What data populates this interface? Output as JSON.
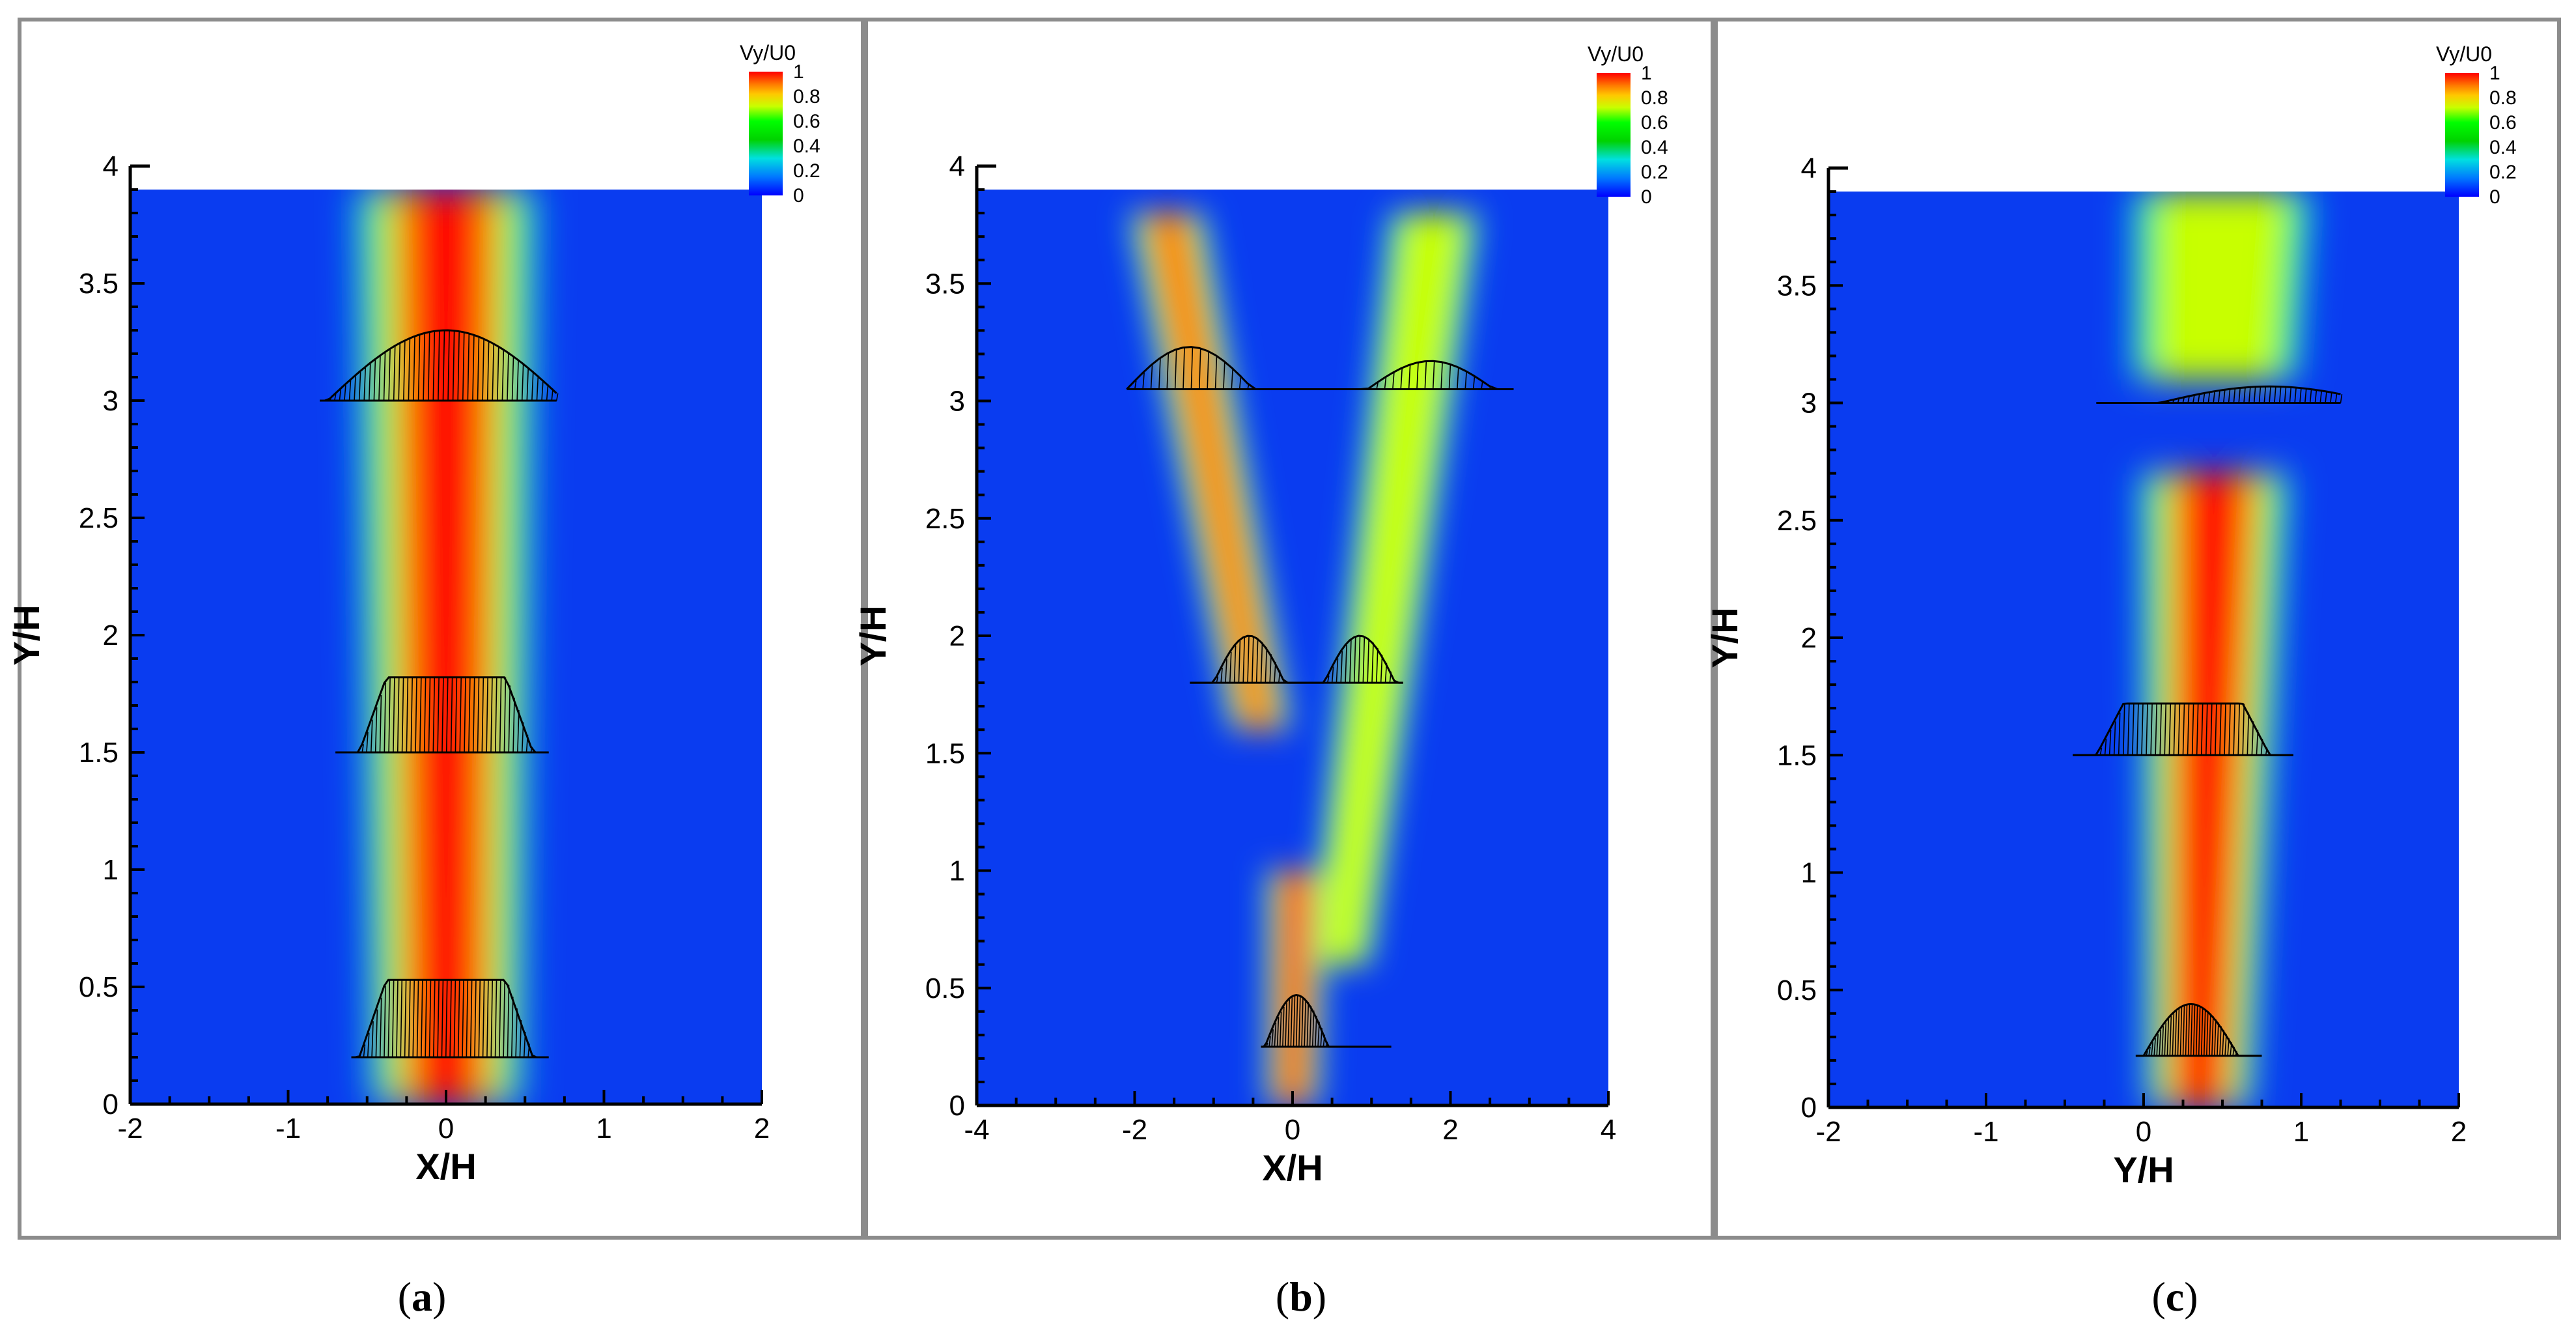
{
  "colors": {
    "scale": [
      "#0000ff",
      "#0078ff",
      "#00e0e0",
      "#00d200",
      "#00ff00",
      "#c8ff00",
      "#ffc800",
      "#ff7800",
      "#ff0000"
    ],
    "background": "#0a3cf0"
  },
  "chart_data": [
    {
      "type": "heatmap",
      "panel_label": "a",
      "title": "",
      "xlabel": "X/H",
      "ylabel": "Y/H",
      "xlim": [
        -2,
        2
      ],
      "ylim": [
        0,
        4
      ],
      "xticks": [
        "-2",
        "-1",
        "0",
        "1",
        "2"
      ],
      "yticks": [
        "0",
        "0.5",
        "1",
        "1.5",
        "2",
        "2.5",
        "3",
        "3.5",
        "4"
      ],
      "field_top": 3.9,
      "colorbar": {
        "title": "Vy/U0",
        "ticks": [
          "0",
          "0.2",
          "0.4",
          "0.6",
          "0.8",
          "1"
        ],
        "range": [
          0,
          1
        ]
      },
      "jets": [
        {
          "x0": 0.0,
          "y0": 0.0,
          "x1": 0.0,
          "y1": 3.9,
          "core_width": [
            0.5,
            0.6
          ],
          "max_value": 1.0
        }
      ],
      "profiles": [
        {
          "y": 3.0,
          "x_range": [
            -0.8,
            0.7
          ],
          "peak": 0.3,
          "center": 0.0,
          "half_width": 0.75,
          "shape": "dome"
        },
        {
          "y": 1.5,
          "x_range": [
            -0.7,
            0.65
          ],
          "peak": 0.32,
          "center": 0.0,
          "half_width": 0.55,
          "shape": "flat"
        },
        {
          "y": 0.2,
          "x_range": [
            -0.6,
            0.65
          ],
          "peak": 0.33,
          "center": 0.0,
          "half_width": 0.55,
          "shape": "flat"
        }
      ]
    },
    {
      "type": "heatmap",
      "panel_label": "b",
      "title": "",
      "xlabel": "X/H",
      "ylabel": "Y/H",
      "xlim": [
        -4,
        4
      ],
      "ylim": [
        0,
        4
      ],
      "xticks": [
        "-4",
        "-2",
        "0",
        "2",
        "4"
      ],
      "yticks": [
        "0",
        "0.5",
        "1",
        "1.5",
        "2",
        "2.5",
        "3",
        "3.5",
        "4"
      ],
      "field_top": 3.9,
      "colorbar": {
        "title": "Vy/U0",
        "ticks": [
          "0",
          "0.2",
          "0.4",
          "0.6",
          "0.8",
          "1"
        ],
        "range": [
          0,
          1
        ]
      },
      "jets": [
        {
          "x0": 0.0,
          "y0": 0.0,
          "x1": 0.05,
          "y1": 1.0,
          "core_width": [
            0.35,
            0.4
          ],
          "max_value": 1.0
        },
        {
          "x0": -0.4,
          "y0": 1.6,
          "x1": -1.6,
          "y1": 3.8,
          "core_width": [
            0.4,
            0.5
          ],
          "max_value": 0.9
        },
        {
          "x0": 0.6,
          "y0": 0.6,
          "x1": 1.8,
          "y1": 3.8,
          "core_width": [
            0.4,
            0.6
          ],
          "max_value": 0.72
        }
      ],
      "profiles": [
        {
          "y": 3.05,
          "x_range": [
            -2.1,
            2.8
          ],
          "peak": 0.18,
          "center": -1.3,
          "half_width": 0.8,
          "shape": "dome",
          "second_center": 1.75,
          "second_peak": 0.12
        },
        {
          "y": 1.8,
          "x_range": [
            -1.3,
            1.4
          ],
          "peak": 0.2,
          "center": -0.55,
          "half_width": 0.45,
          "shape": "dome",
          "second_center": 0.85,
          "second_peak": 0.2
        },
        {
          "y": 0.25,
          "x_range": [
            -0.4,
            1.25
          ],
          "peak": 0.22,
          "center": 0.05,
          "half_width": 0.4,
          "shape": "dome"
        }
      ]
    },
    {
      "type": "heatmap",
      "panel_label": "c",
      "title": "",
      "xlabel": "Y/H",
      "ylabel": "Y/H",
      "xlim": [
        -2,
        2
      ],
      "ylim": [
        0,
        4
      ],
      "xticks": [
        "-2",
        "-1",
        "0",
        "1",
        "2"
      ],
      "yticks": [
        "0",
        "0.5",
        "1",
        "1.5",
        "2",
        "2.5",
        "3",
        "3.5",
        "4"
      ],
      "field_top": 3.9,
      "colorbar": {
        "title": "Vy/U0",
        "ticks": [
          "0",
          "0.2",
          "0.4",
          "0.6",
          "0.8",
          "1"
        ],
        "range": [
          0,
          1
        ]
      },
      "jets": [
        {
          "x0": 0.35,
          "y0": 0.0,
          "x1": 0.45,
          "y1": 2.7,
          "core_width": [
            0.35,
            0.5
          ],
          "max_value": 1.0
        },
        {
          "x0": 0.45,
          "y0": 3.1,
          "x1": 0.5,
          "y1": 3.9,
          "core_width": [
            0.55,
            0.6
          ],
          "max_value": 0.75
        }
      ],
      "profiles": [
        {
          "y": 3.0,
          "x_range": [
            -0.3,
            1.25
          ],
          "peak": 0.07,
          "center": 0.8,
          "half_width": 0.7,
          "shape": "dome"
        },
        {
          "y": 1.5,
          "x_range": [
            -0.45,
            0.95
          ],
          "peak": 0.22,
          "center": 0.25,
          "half_width": 0.55,
          "shape": "flat"
        },
        {
          "y": 0.22,
          "x_range": [
            -0.05,
            0.75
          ],
          "peak": 0.22,
          "center": 0.3,
          "half_width": 0.3,
          "shape": "dome"
        }
      ]
    }
  ]
}
